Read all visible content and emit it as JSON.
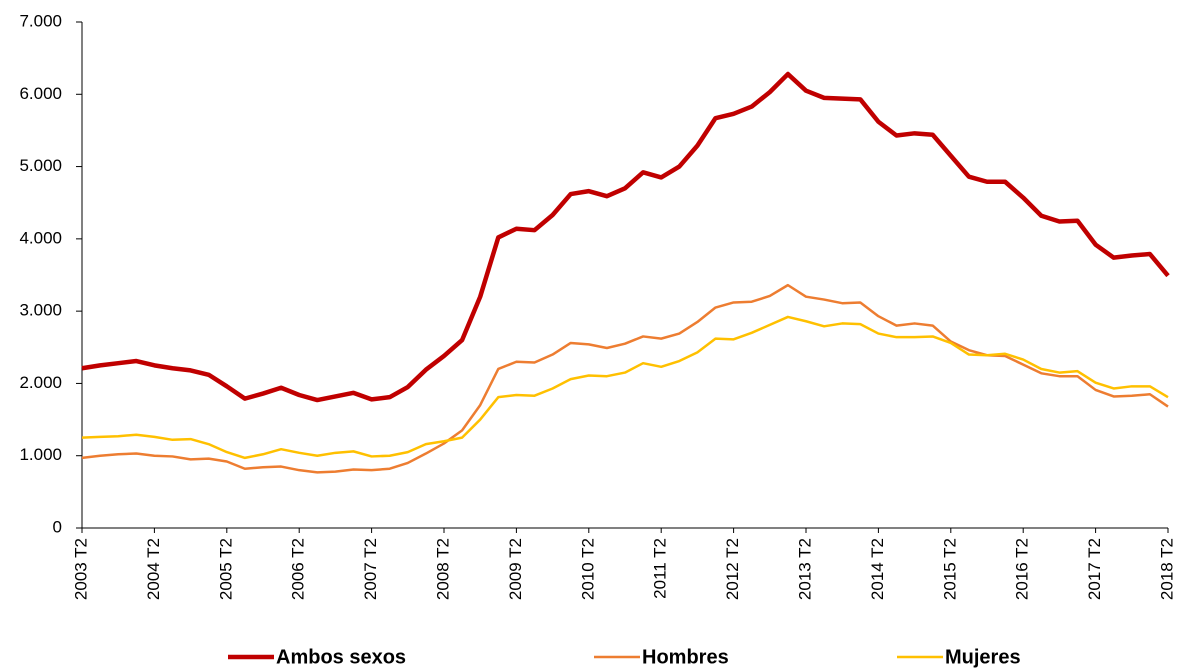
{
  "chart_data": {
    "type": "line",
    "categories": [
      "2003 T2",
      null,
      null,
      null,
      "2004 T2",
      null,
      null,
      null,
      "2005 T2",
      null,
      null,
      null,
      "2006 T2",
      null,
      null,
      null,
      "2007 T2",
      null,
      null,
      null,
      "2008 T2",
      null,
      null,
      null,
      "2009 T2",
      null,
      null,
      null,
      "2010 T2",
      null,
      null,
      null,
      "2011 T2",
      null,
      null,
      null,
      "2012 T2",
      null,
      null,
      null,
      "2013 T2",
      null,
      null,
      null,
      "2014 T2",
      null,
      null,
      null,
      "2015 T2",
      null,
      null,
      null,
      "2016 T2",
      null,
      null,
      null,
      "2017 T2",
      null,
      null,
      null,
      "2018 T2"
    ],
    "series": [
      {
        "name": "Ambos sexos",
        "color": "#c00000",
        "values": [
          2210,
          2250,
          2280,
          2310,
          2250,
          2210,
          2180,
          2120,
          1960,
          1790,
          1860,
          1940,
          1840,
          1770,
          1820,
          1870,
          1780,
          1810,
          1950,
          2190,
          2380,
          2600,
          3200,
          4020,
          4140,
          4120,
          4330,
          4620,
          4660,
          4590,
          4700,
          4920,
          4850,
          5000,
          5290,
          5670,
          5730,
          5830,
          6030,
          6280,
          6050,
          5950,
          5940,
          5930,
          5620,
          5430,
          5460,
          5440,
          5150,
          4860,
          4790,
          4790,
          4570,
          4320,
          4240,
          4250,
          3920,
          3740,
          3770,
          3790,
          3490
        ]
      },
      {
        "name": "Hombres",
        "color": "#ed7d31",
        "values": [
          970,
          1000,
          1020,
          1030,
          1000,
          990,
          950,
          960,
          920,
          820,
          840,
          850,
          800,
          770,
          780,
          810,
          800,
          820,
          900,
          1030,
          1170,
          1350,
          1700,
          2200,
          2300,
          2290,
          2400,
          2560,
          2540,
          2490,
          2550,
          2650,
          2620,
          2690,
          2850,
          3050,
          3120,
          3130,
          3210,
          3360,
          3200,
          3160,
          3110,
          3120,
          2930,
          2800,
          2830,
          2800,
          2580,
          2460,
          2390,
          2380,
          2260,
          2140,
          2100,
          2100,
          1910,
          1820,
          1830,
          1850,
          1680
        ]
      },
      {
        "name": "Mujeres",
        "color": "#ffc000",
        "values": [
          1250,
          1260,
          1270,
          1290,
          1260,
          1220,
          1230,
          1160,
          1050,
          970,
          1020,
          1090,
          1040,
          1000,
          1040,
          1060,
          990,
          1000,
          1050,
          1160,
          1200,
          1250,
          1500,
          1810,
          1840,
          1830,
          1930,
          2060,
          2110,
          2100,
          2150,
          2280,
          2230,
          2310,
          2430,
          2620,
          2610,
          2700,
          2810,
          2920,
          2860,
          2790,
          2830,
          2820,
          2690,
          2640,
          2640,
          2650,
          2560,
          2400,
          2390,
          2410,
          2330,
          2200,
          2150,
          2170,
          2010,
          1930,
          1960,
          1960,
          1810
        ]
      }
    ],
    "ylim": [
      0,
      7000
    ],
    "yticks": [
      0,
      {
        "value": 1000,
        "label": "1.000"
      },
      {
        "value": 2000,
        "label": "2.000"
      },
      {
        "value": 3000,
        "label": "3.000"
      },
      {
        "value": 4000,
        "label": "4.000"
      },
      {
        "value": 5000,
        "label": "5.000"
      },
      {
        "value": 6000,
        "label": "6.000"
      },
      {
        "value": 7000,
        "label": "7.000"
      }
    ],
    "grid": false
  }
}
